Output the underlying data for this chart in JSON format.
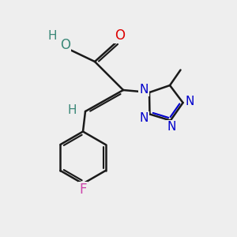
{
  "bg_color": "#eeeeee",
  "bond_color": "#1a1a1a",
  "bond_width": 1.8,
  "atom_colors": {
    "O": "#dd0000",
    "N": "#0000cc",
    "F": "#cc44aa",
    "H": "#3a8878",
    "C": "#1a1a1a"
  },
  "font_size": 11,
  "xlim": [
    0,
    10
  ],
  "ylim": [
    0,
    10
  ]
}
